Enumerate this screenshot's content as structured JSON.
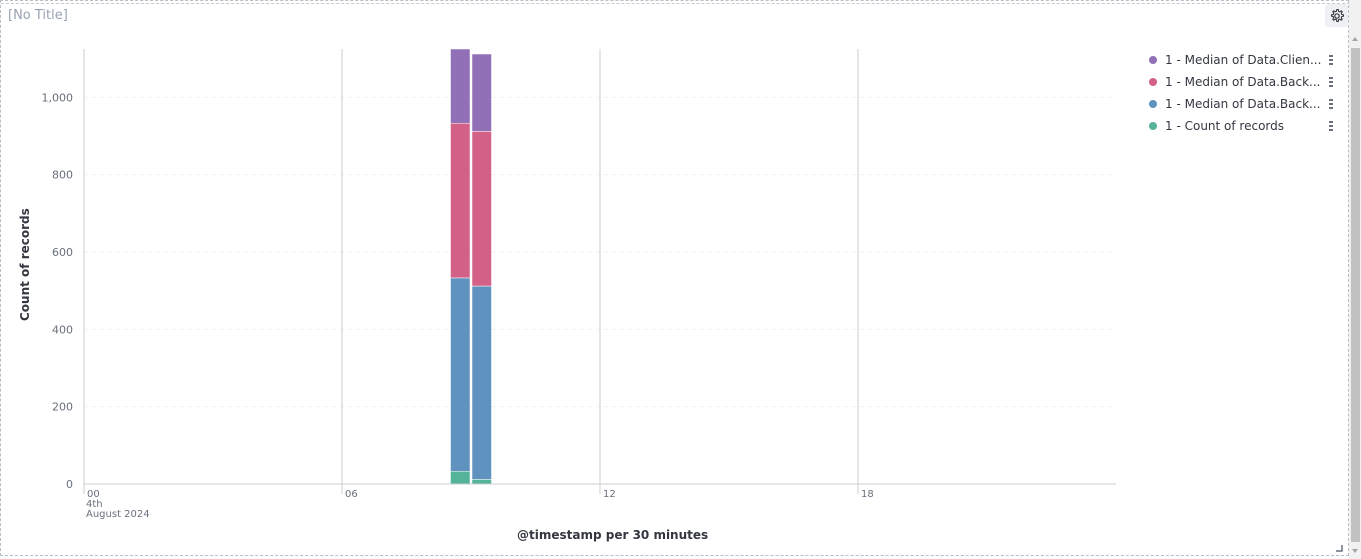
{
  "panel": {
    "title": "[No Title]"
  },
  "chart_data": {
    "type": "bar",
    "stacked": true,
    "xlabel": "@timestamp per 30 minutes",
    "ylabel": "Count of records",
    "x_axis_labels": [
      {
        "tick": "00",
        "sub1": "4th",
        "sub2": "August 2024",
        "hour": 0
      },
      {
        "tick": "06",
        "hour": 6
      },
      {
        "tick": "12",
        "hour": 12
      },
      {
        "tick": "18",
        "hour": 18
      }
    ],
    "xlim_hours": [
      0,
      24
    ],
    "ylim": [
      0,
      1125
    ],
    "y_ticks": [
      "0",
      "200",
      "400",
      "600",
      "800",
      "1,000"
    ],
    "y_tick_values": [
      0,
      200,
      400,
      600,
      800,
      1000
    ],
    "grid": true,
    "legend_position": "right",
    "buckets": [
      {
        "start_hour": 8.5,
        "end_hour": 9.0
      },
      {
        "start_hour": 9.0,
        "end_hour": 9.5
      }
    ],
    "series": [
      {
        "name": "1 - Count of records",
        "color": "#54b399",
        "values": [
          33,
          12
        ]
      },
      {
        "name": "1 - Median of Data.Back...",
        "color": "#6092c0",
        "values": [
          500,
          500
        ]
      },
      {
        "name": "1 - Median of Data.Back...",
        "color": "#d36086",
        "values": [
          400,
          400
        ]
      },
      {
        "name": "1 - Median of Data.Clien...",
        "color": "#9170b8",
        "values": [
          200,
          200
        ]
      }
    ]
  },
  "legend": [
    {
      "label": "1 - Median of Data.Clien...",
      "color": "#9170b8"
    },
    {
      "label": "1 - Median of Data.Back...",
      "color": "#d36086"
    },
    {
      "label": "1 - Median of Data.Back...",
      "color": "#6092c0"
    },
    {
      "label": "1 - Count of records",
      "color": "#54b399"
    }
  ],
  "icons": {
    "settings": "gear-icon",
    "legend_menu": "vertical-dots-icon"
  }
}
